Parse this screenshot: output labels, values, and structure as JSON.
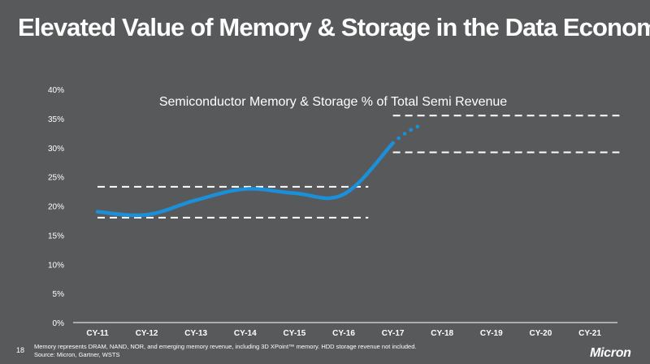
{
  "slide": {
    "title": "Elevated Value of Memory & Storage in the Data Economy",
    "page_number": "18",
    "footnote": "Memory represents DRAM, NAND, NOR, and emerging memory revenue, including 3D XPoint™ memory. HDD storage revenue not included.",
    "source": "Source: Micron, Gartner, WSTS",
    "logo": "Micron"
  },
  "chart_data": {
    "type": "line",
    "title": "Semiconductor Memory & Storage % of Total Semi Revenue",
    "categories": [
      "CY-11",
      "CY-12",
      "CY-13",
      "CY-14",
      "CY-15",
      "CY-16",
      "CY-17",
      "CY-18",
      "CY-19",
      "CY-20",
      "CY-21"
    ],
    "y_ticks": [
      "0%",
      "5%",
      "10%",
      "15%",
      "20%",
      "25%",
      "30%",
      "35%",
      "40%"
    ],
    "ylim": [
      0,
      40
    ],
    "series": [
      {
        "actual": [
          19.0,
          18.5,
          21.0,
          22.9,
          22.2,
          22.0,
          30.8
        ],
        "projected": [
          30.8,
          34.0
        ],
        "projected_end_index": 7,
        "color": "#1b8fd8"
      }
    ],
    "reference_bands": [
      {
        "from_index": 0,
        "to_index": 5.5,
        "low": 18.0,
        "high": 23.3
      },
      {
        "from_index": 6,
        "to_index": 10.6,
        "low": 29.2,
        "high": 35.5
      }
    ],
    "grid": false,
    "legend": "none",
    "colors": {
      "axis": "#ffffff",
      "band": "#ffffff",
      "line": "#1b8fd8"
    }
  }
}
